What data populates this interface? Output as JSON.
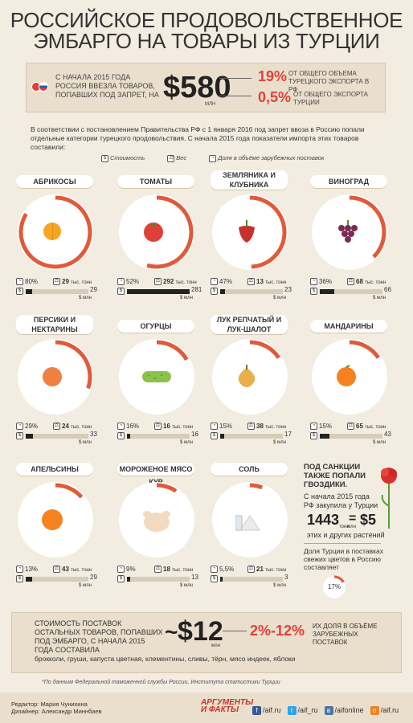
{
  "title_line1": "РОССИЙСКОЕ ПРОДОВОЛЬСТВЕННОЕ",
  "title_line2": "ЭМБАРГО НА ТОВАРЫ ИЗ ТУРЦИИ",
  "summary": {
    "text": "С НАЧАЛА 2015 ГОДА РОССИЯ ВВЕЗЛА ТОВАРОВ, ПОПАВШИХ ПОД ЗАПРЕТ, НА",
    "amount": "$580",
    "amount_unit": "МЛН",
    "pct1": "19%",
    "pct1_text": "ОТ ОБЩЕГО ОБЪЕМА ТУРЕЦКОГО ЭКСПОРТА В РФ",
    "pct2": "0,5%",
    "pct2_text": "ОТ ОБЩЕГО ЭКСПОРТА ТУРЦИИ"
  },
  "intro": "В соответствии с постановлением Правительства РФ с 1 января 2016 под запрет ввоза в Россию попали отдельные категории турецкого продовольствия. С начала 2015 года показатели импорта этих товаров составили:",
  "legend": {
    "cost": "Стоимость",
    "weight": "Вес",
    "share": "Доля в объёме зарубежных поставок"
  },
  "weight_unit": "тыс. тонн",
  "money_unit": "$ млн",
  "products": [
    {
      "name": "АБРИКОСЫ",
      "share": "80%",
      "share_value": 80,
      "weight": "29",
      "money": "29",
      "money_value": 29,
      "color": "#f5a623",
      "icon": "apricot-icon"
    },
    {
      "name": "ТОМАТЫ",
      "share": "52%",
      "share_value": 52,
      "weight": "292",
      "money": "281",
      "money_value": 281,
      "color": "#e0403a",
      "icon": "tomato-icon"
    },
    {
      "name": "ЗЕМЛЯНИКА И КЛУБНИКА",
      "share": "47%",
      "share_value": 47,
      "weight": "13",
      "money": "23",
      "money_value": 23,
      "color": "#c9302c",
      "icon": "strawberry-icon"
    },
    {
      "name": "ВИНОГРАД",
      "share": "36%",
      "share_value": 36,
      "weight": "68",
      "money": "66",
      "money_value": 66,
      "color": "#7a2a55",
      "icon": "grapes-icon"
    },
    {
      "name": "ПЕРСИКИ И НЕКТАРИНЫ",
      "share": "29%",
      "share_value": 29,
      "weight": "24",
      "money": "33",
      "money_value": 33,
      "color": "#f08040",
      "icon": "peach-icon"
    },
    {
      "name": "ОГУРЦЫ",
      "share": "16%",
      "share_value": 16,
      "weight": "16",
      "money": "16",
      "money_value": 16,
      "color": "#8bc34a",
      "icon": "cucumber-icon"
    },
    {
      "name": "ЛУК РЕПЧАТЫЙ И ЛУК-ШАЛОТ",
      "share": "15%",
      "share_value": 15,
      "weight": "38",
      "money": "17",
      "money_value": 17,
      "color": "#e8b04a",
      "icon": "onion-icon"
    },
    {
      "name": "МАНДАРИНЫ",
      "share": "15%",
      "share_value": 15,
      "weight": "65",
      "money": "43",
      "money_value": 43,
      "color": "#f5821f",
      "icon": "tangerine-icon"
    },
    {
      "name": "АПЕЛЬСИНЫ",
      "share": "13%",
      "share_value": 13,
      "weight": "43",
      "money": "29",
      "money_value": 29,
      "color": "#f58220",
      "icon": "orange-icon"
    },
    {
      "name": "МОРОЖЕНОЕ МЯСО КУР",
      "share": "9%",
      "share_value": 9,
      "weight": "18",
      "money": "13",
      "money_value": 13,
      "color": "#f3d9bf",
      "icon": "chicken-icon"
    },
    {
      "name": "СОЛЬ",
      "share": "5,5%",
      "share_value": 5.5,
      "weight": "21",
      "money": "3",
      "money_value": 3,
      "color": "#ffffff",
      "icon": "salt-icon"
    }
  ],
  "flowers": {
    "title": "ПОД САНКЦИИ ТАКЖЕ ПОПАЛИ ГВОЗДИКИ.",
    "text1": "С начала 2015 года РФ закупила у Турции",
    "tons": "1443",
    "tons_unit": "тонн",
    "eq": "=",
    "money": "$5",
    "money_unit": "млн",
    "text2": "этих и других растений",
    "text3": "Доля Турции в поставках свежих цветов в Россию составляет",
    "share": "17%",
    "share_value": 17
  },
  "bottom": {
    "text": "СТОИМОСТЬ ПОСТАВОК ОСТАЛЬНЫХ ТОВАРОВ, ПОПАВШИХ ПОД ЭМБАРГО, С НАЧАЛА 2015 ГОДА СОСТАВИЛА",
    "tilde": "~",
    "amount": "$12",
    "amount_unit": "млн",
    "range": "2%-12%",
    "range_text": "ИХ ДОЛЯ В ОБЪЁМЕ ЗАРУБЕЖНЫХ ПОСТАВОК",
    "items": "брокколи, груши, капуста цветная, клементины, сливы, тёрн, мясо индеек, яблоки"
  },
  "source": "*По данным Федеральной таможенной службы России, Института статистики Турции",
  "footer": {
    "editor": "Редактор: Мария Чунихина",
    "designer": "Дизайнер: Александр Миннбаев",
    "logo_line1": "АРГУМЕНТЫ",
    "logo_line2": "И ФАКТЫ",
    "socials": [
      {
        "label": "/aif.ru",
        "icon": "facebook-icon",
        "color": "#3b5998",
        "glyph": "f"
      },
      {
        "label": "/aif_ru",
        "icon": "twitter-icon",
        "color": "#2aa3ef",
        "glyph": "t"
      },
      {
        "label": "/aifonline",
        "icon": "vk-icon",
        "color": "#4c75a3",
        "glyph": "в"
      },
      {
        "label": "/aif.ru",
        "icon": "odnoklassniki-icon",
        "color": "#f58220",
        "glyph": "о"
      }
    ]
  }
}
